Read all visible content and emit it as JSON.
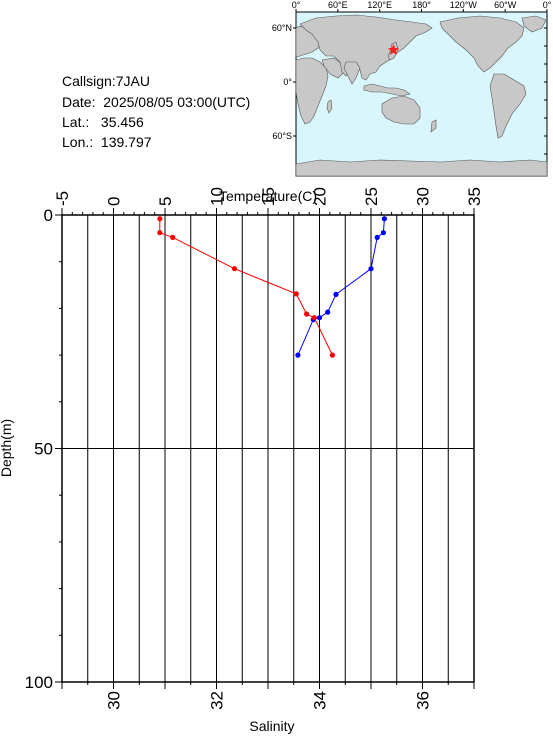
{
  "station": {
    "callsign_label": "Callsign:",
    "callsign": "7JAU",
    "date_label": "Date:",
    "date": "2025/08/05 03:00(UTC)",
    "lat_label": "Lat.:",
    "lat": "35.456",
    "lon_label": "Lon.:",
    "lon": "139.797"
  },
  "map": {
    "top_ticks": [
      "0°",
      "60°E",
      "120°E",
      "180°",
      "120°W",
      "60°W",
      "0°"
    ],
    "left_ticks": [
      "60°N",
      "0°",
      "60°S"
    ],
    "ocean_color": "#d8f6fb",
    "land_color": "#c8c8c8",
    "marker_color": "#ff2020",
    "marker_lon": 139.797,
    "marker_lat": 35.456
  },
  "chart_data": {
    "type": "line",
    "xlabel_top": "Temperature(C)",
    "xlabel_bottom": "Salinity",
    "ylabel": "Depth(m)",
    "temperature_axis": {
      "range": [
        -5,
        35
      ],
      "ticks": [
        -5,
        0,
        5,
        10,
        15,
        20,
        25,
        30,
        35
      ]
    },
    "salinity_axis": {
      "range": [
        29,
        37
      ],
      "ticks": [
        30,
        32,
        34,
        36
      ]
    },
    "depth_axis": {
      "range": [
        0,
        100
      ],
      "ticks": [
        0,
        50,
        100
      ],
      "inverted": true
    },
    "grid": true,
    "series": [
      {
        "color": "#0000ff",
        "axis": "temperature",
        "points": [
          [
            26.3,
            0.8
          ],
          [
            26.2,
            3.8
          ],
          [
            25.6,
            4.8
          ],
          [
            25.0,
            11.5
          ],
          [
            21.6,
            17.0
          ],
          [
            20.8,
            20.8
          ],
          [
            20.0,
            22.0
          ],
          [
            19.4,
            22.4
          ],
          [
            17.9,
            30.0
          ]
        ]
      },
      {
        "color": "#ff0000",
        "axis": "salinity",
        "points": [
          [
            30.9,
            0.8
          ],
          [
            30.9,
            3.8
          ],
          [
            31.15,
            4.8
          ],
          [
            32.35,
            11.5
          ],
          [
            33.55,
            16.9
          ],
          [
            33.75,
            21.2
          ],
          [
            33.9,
            22.0
          ],
          [
            34.25,
            30.0
          ]
        ]
      }
    ]
  }
}
